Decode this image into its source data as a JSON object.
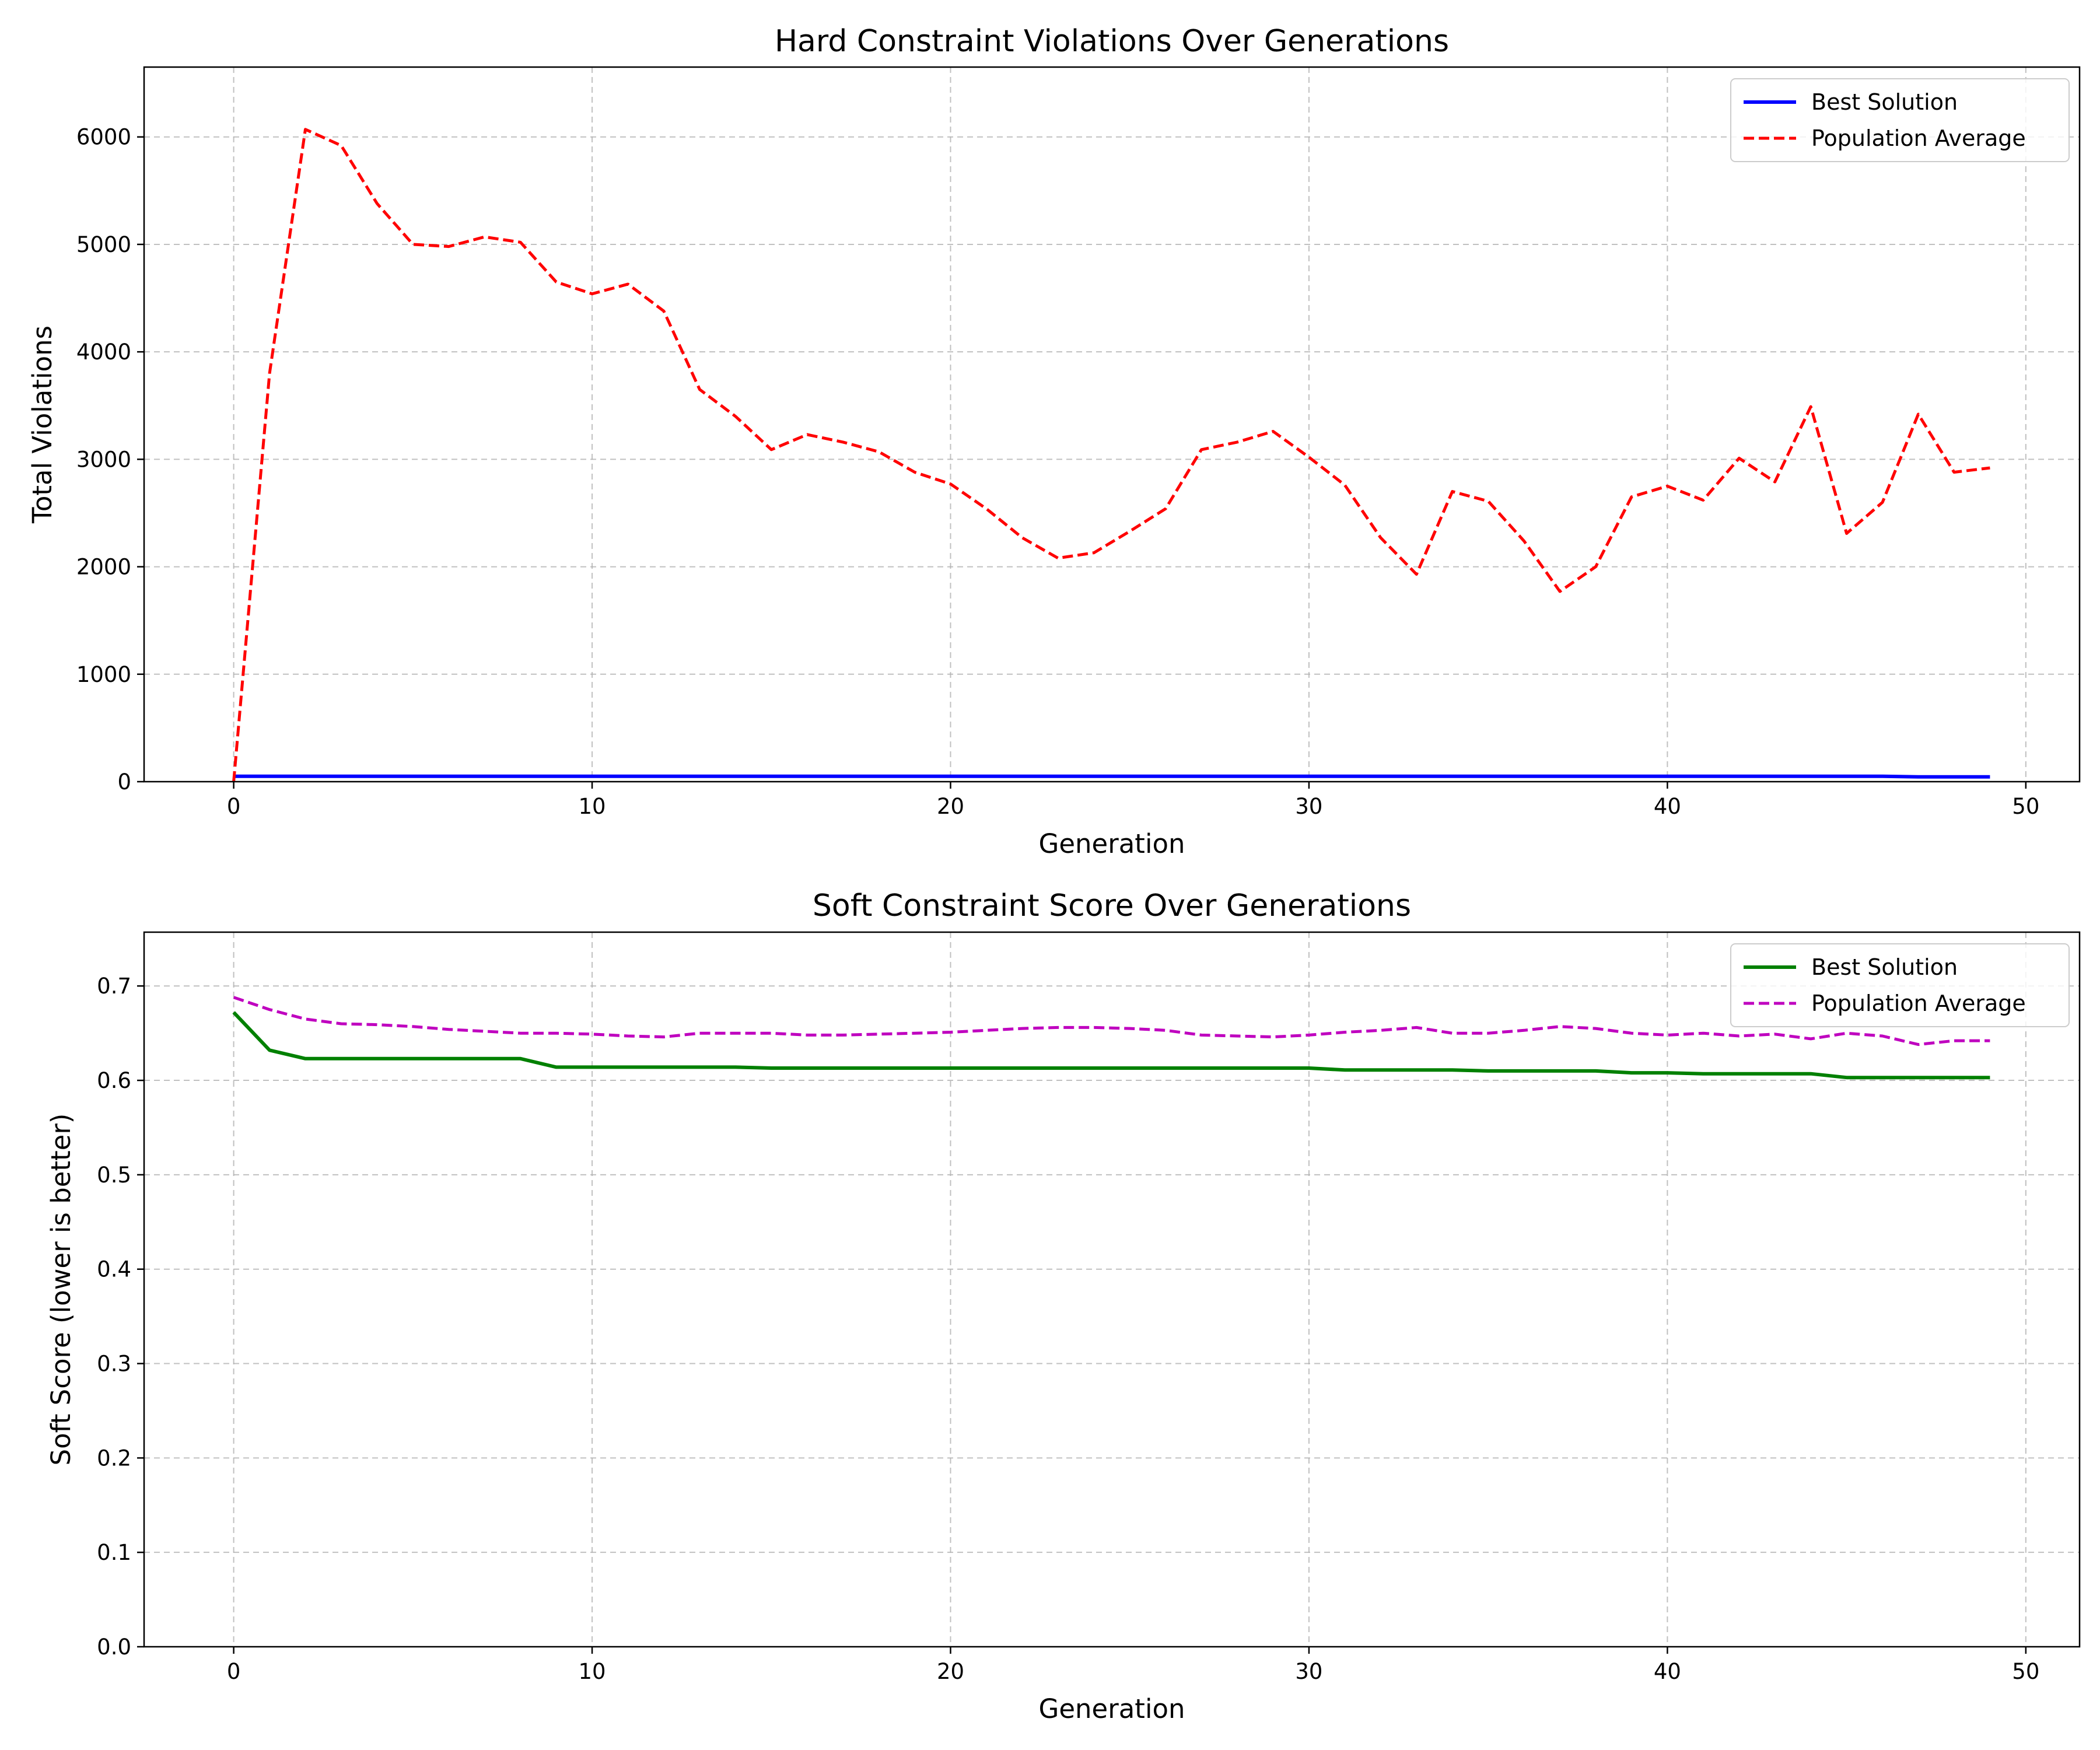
{
  "chart_data": [
    {
      "type": "line",
      "title": "Hard Constraint Violations Over Generations",
      "xlabel": "Generation",
      "ylabel": "Total Violations",
      "xlim": [
        -2.5,
        51.5
      ],
      "ylim": [
        0,
        6650
      ],
      "xticks": [
        0,
        10,
        20,
        30,
        40,
        50
      ],
      "yticks": [
        0,
        1000,
        2000,
        3000,
        4000,
        5000,
        6000
      ],
      "grid": true,
      "legend_position": "top-right",
      "x": [
        0,
        1,
        2,
        3,
        4,
        5,
        6,
        7,
        8,
        9,
        10,
        11,
        12,
        13,
        14,
        15,
        16,
        17,
        18,
        19,
        20,
        21,
        22,
        23,
        24,
        25,
        26,
        27,
        28,
        29,
        30,
        31,
        32,
        33,
        34,
        35,
        36,
        37,
        38,
        39,
        40,
        41,
        42,
        43,
        44,
        45,
        46,
        47,
        48,
        49
      ],
      "series": [
        {
          "name": "Best Solution",
          "color": "#0000ff",
          "style": "solid",
          "values": [
            50,
            50,
            50,
            50,
            50,
            50,
            50,
            50,
            50,
            50,
            50,
            50,
            50,
            50,
            50,
            50,
            50,
            50,
            50,
            50,
            50,
            50,
            50,
            50,
            50,
            50,
            50,
            50,
            50,
            50,
            50,
            50,
            50,
            50,
            50,
            50,
            50,
            50,
            50,
            50,
            50,
            50,
            50,
            50,
            50,
            50,
            50,
            45,
            45,
            45
          ]
        },
        {
          "name": "Population Average",
          "color": "#ff0000",
          "style": "dashed",
          "values": [
            0,
            3800,
            6070,
            5920,
            5380,
            5000,
            4980,
            5070,
            5020,
            4650,
            4540,
            4630,
            4380,
            3650,
            3400,
            3090,
            3230,
            3160,
            3070,
            2880,
            2770,
            2540,
            2270,
            2080,
            2130,
            2330,
            2540,
            3090,
            3160,
            3260,
            3020,
            2760,
            2270,
            1930,
            2700,
            2610,
            2240,
            1770,
            2000,
            2650,
            2750,
            2620,
            3010,
            2790,
            3490,
            2310,
            2600,
            3420,
            2880,
            2920
          ]
        }
      ]
    },
    {
      "type": "line",
      "title": "Soft Constraint Score Over Generations",
      "xlabel": "Generation",
      "ylabel": "Soft Score (lower is better)",
      "xlim": [
        -2.5,
        51.5
      ],
      "ylim": [
        0,
        0.757
      ],
      "xticks": [
        0,
        10,
        20,
        30,
        40,
        50
      ],
      "yticks": [
        0.0,
        0.1,
        0.2,
        0.3,
        0.4,
        0.5,
        0.6,
        0.7
      ],
      "grid": true,
      "legend_position": "top-right",
      "x": [
        0,
        1,
        2,
        3,
        4,
        5,
        6,
        7,
        8,
        9,
        10,
        11,
        12,
        13,
        14,
        15,
        16,
        17,
        18,
        19,
        20,
        21,
        22,
        23,
        24,
        25,
        26,
        27,
        28,
        29,
        30,
        31,
        32,
        33,
        34,
        35,
        36,
        37,
        38,
        39,
        40,
        41,
        42,
        43,
        44,
        45,
        46,
        47,
        48,
        49
      ],
      "series": [
        {
          "name": "Best Solution",
          "color": "#008000",
          "style": "solid",
          "values": [
            0.672,
            0.632,
            0.623,
            0.623,
            0.623,
            0.623,
            0.623,
            0.623,
            0.623,
            0.614,
            0.614,
            0.614,
            0.614,
            0.614,
            0.614,
            0.613,
            0.613,
            0.613,
            0.613,
            0.613,
            0.613,
            0.613,
            0.613,
            0.613,
            0.613,
            0.613,
            0.613,
            0.613,
            0.613,
            0.613,
            0.613,
            0.611,
            0.611,
            0.611,
            0.611,
            0.61,
            0.61,
            0.61,
            0.61,
            0.608,
            0.608,
            0.607,
            0.607,
            0.607,
            0.607,
            0.603,
            0.603,
            0.603,
            0.603,
            0.603
          ]
        },
        {
          "name": "Population Average",
          "color": "#bf00bf",
          "style": "dashed",
          "values": [
            0.688,
            0.675,
            0.665,
            0.66,
            0.659,
            0.657,
            0.654,
            0.652,
            0.65,
            0.65,
            0.649,
            0.647,
            0.646,
            0.65,
            0.65,
            0.65,
            0.648,
            0.648,
            0.649,
            0.65,
            0.651,
            0.653,
            0.655,
            0.656,
            0.656,
            0.655,
            0.653,
            0.648,
            0.647,
            0.646,
            0.648,
            0.651,
            0.653,
            0.656,
            0.65,
            0.65,
            0.653,
            0.657,
            0.655,
            0.65,
            0.648,
            0.65,
            0.647,
            0.649,
            0.644,
            0.65,
            0.647,
            0.638,
            0.642,
            0.642
          ]
        }
      ]
    }
  ]
}
